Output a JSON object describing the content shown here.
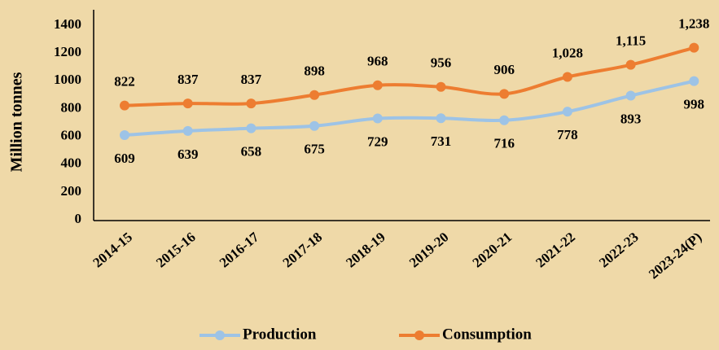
{
  "chart_data": {
    "type": "line",
    "y_label": "Million tonnes",
    "categories": [
      "2014-15",
      "2015-16",
      "2016-17",
      "2017-18",
      "2018-19",
      "2019-20",
      "2020-21",
      "2021-22",
      "2022-23",
      "2023-24(P)"
    ],
    "series": [
      {
        "name": "Production",
        "color": "#9dc3e6",
        "values": [
          609,
          639,
          658,
          675,
          729,
          731,
          716,
          778,
          893,
          998
        ]
      },
      {
        "name": "Consumption",
        "color": "#ed7d31",
        "values": [
          822,
          837,
          837,
          898,
          968,
          956,
          906,
          1028,
          1115,
          1238
        ],
        "value_labels": [
          "822",
          "837",
          "837",
          "898",
          "968",
          "956",
          "906",
          "1,028",
          "1,115",
          "1,238"
        ]
      }
    ],
    "ylim": [
      0,
      1400
    ],
    "yticks": [
      0,
      200,
      400,
      600,
      800,
      1000,
      1200,
      1400
    ],
    "grid": false
  }
}
